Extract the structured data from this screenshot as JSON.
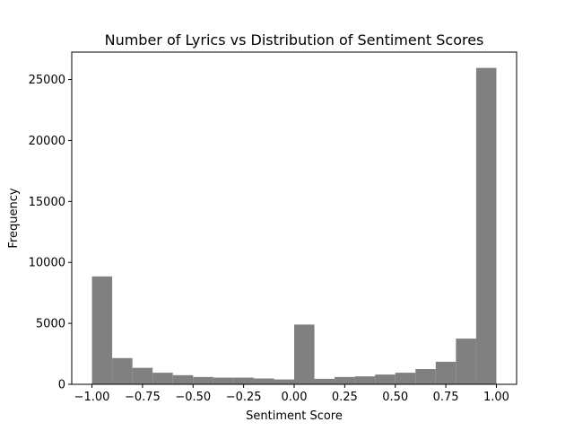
{
  "chart_data": {
    "type": "bar",
    "title": "Number of Lyrics vs Distribution of Sentiment Scores",
    "xlabel": "Sentiment Score",
    "ylabel": "Frequency",
    "bin_edges": [
      -1.0,
      -0.9,
      -0.8,
      -0.7,
      -0.6,
      -0.5,
      -0.4,
      -0.3,
      -0.2,
      -0.1,
      0.0,
      0.1,
      0.2,
      0.3,
      0.4,
      0.5,
      0.6,
      0.7,
      0.8,
      0.9,
      1.0
    ],
    "values": [
      8850,
      2150,
      1350,
      950,
      750,
      600,
      550,
      550,
      480,
      400,
      4900,
      450,
      600,
      650,
      800,
      950,
      1250,
      1850,
      3750,
      25950
    ],
    "bar_color": "#808080",
    "xlim": [
      -1.1,
      1.1
    ],
    "ylim": [
      0,
      27250
    ],
    "xticks": [
      -1.0,
      -0.75,
      -0.5,
      -0.25,
      0.0,
      0.25,
      0.5,
      0.75,
      1.0
    ],
    "xtick_labels": [
      "−1.00",
      "−0.75",
      "−0.50",
      "−0.25",
      "0.00",
      "0.25",
      "0.50",
      "0.75",
      "1.00"
    ],
    "yticks": [
      0,
      5000,
      10000,
      15000,
      20000,
      25000
    ],
    "ytick_labels": [
      "0",
      "5000",
      "10000",
      "15000",
      "20000",
      "25000"
    ],
    "grid": false,
    "legend": false
  }
}
